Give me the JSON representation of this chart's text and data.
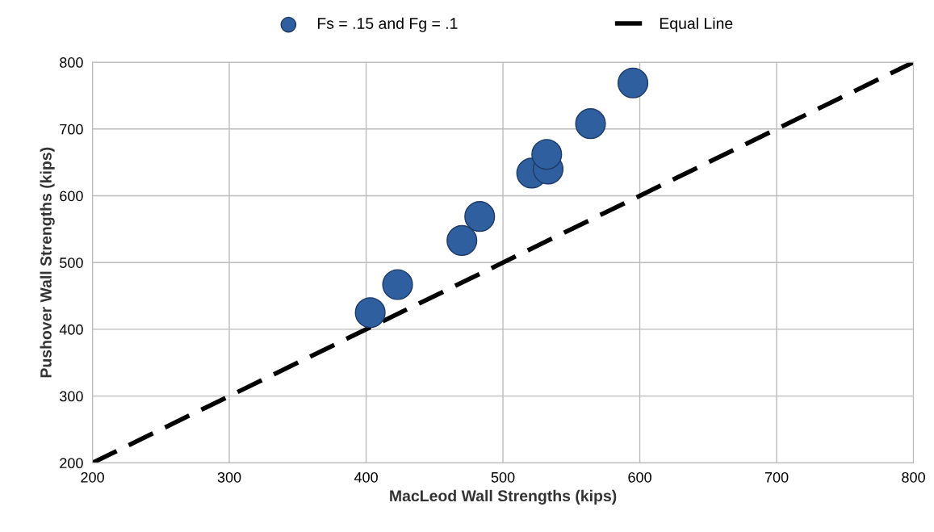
{
  "chart_data": {
    "type": "scatter",
    "xlabel": "MacLeod Wall Strengths (kips)",
    "ylabel": "Pushover Wall Strengths (kips)",
    "xlim": [
      200,
      800
    ],
    "ylim": [
      200,
      800
    ],
    "xticks": [
      200,
      300,
      400,
      500,
      600,
      700,
      800
    ],
    "yticks": [
      200,
      300,
      400,
      500,
      600,
      700,
      800
    ],
    "grid": true,
    "legend": "top",
    "series": [
      {
        "name": "Fs = .15 and Fg = .1",
        "color": "#2f5f9f",
        "marker": "circle",
        "x": [
          403,
          423,
          470,
          483,
          521,
          533,
          532,
          564,
          595
        ],
        "values": [
          425,
          467,
          533,
          569,
          634,
          640,
          662,
          708,
          769
        ]
      },
      {
        "name": "Equal Line",
        "type": "line",
        "color": "#000000",
        "line_style": "dashed",
        "marker": "none",
        "x": [
          200,
          800
        ],
        "values": [
          200,
          800
        ]
      }
    ]
  }
}
